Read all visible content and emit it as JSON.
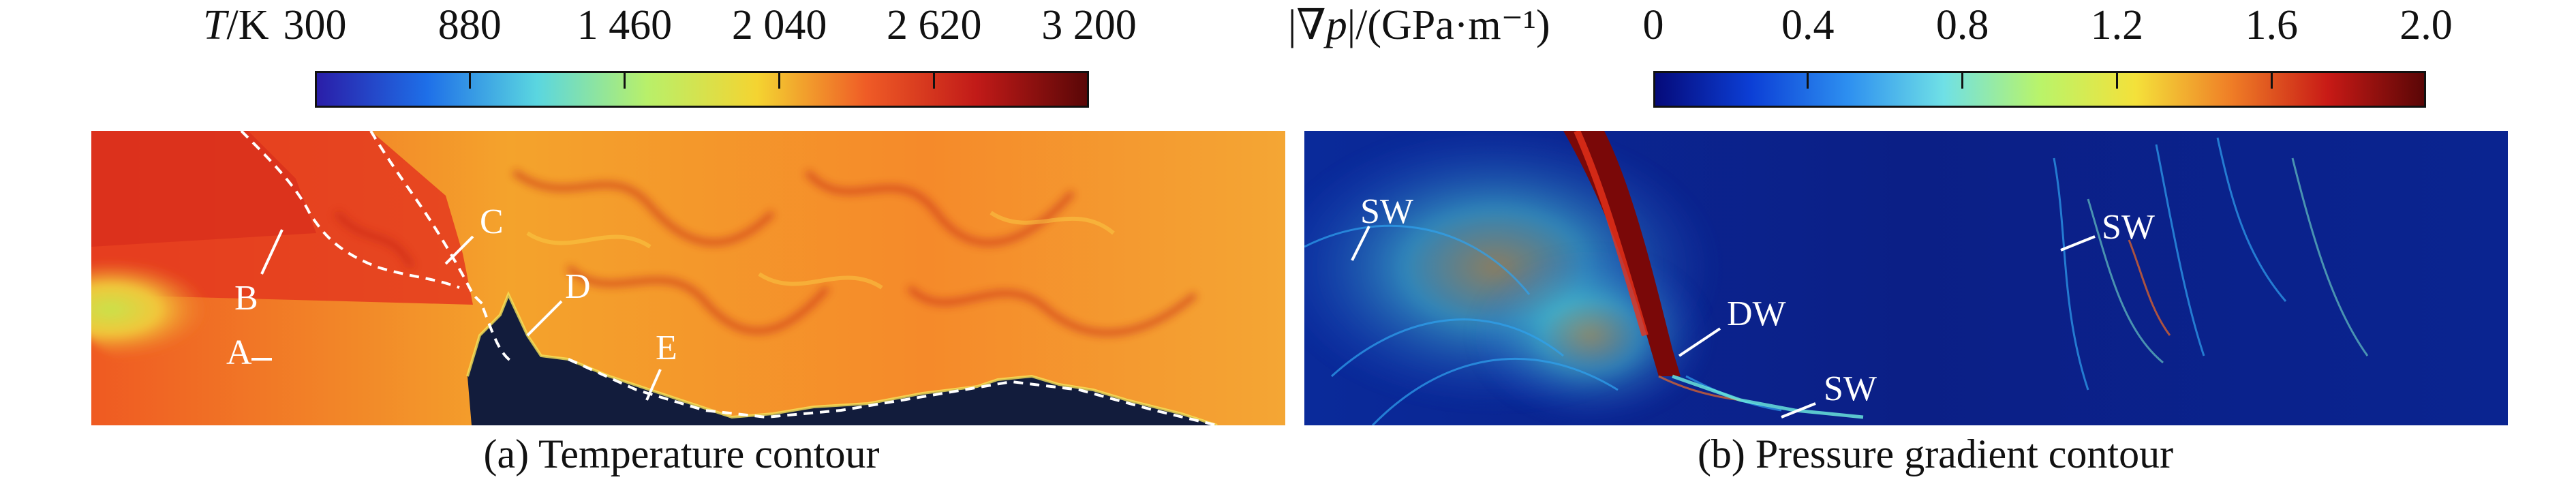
{
  "panel_a": {
    "colorbar": {
      "title": "T/K",
      "ticks": [
        "300",
        "880",
        "1 460",
        "2 040",
        "2 620",
        "3 200"
      ],
      "colormap": [
        "#2a1ea8",
        "#1e6fe8",
        "#5ad6e0",
        "#b8f06a",
        "#f4d431",
        "#ef5b26",
        "#c11a18",
        "#5a0707"
      ]
    },
    "labels": [
      "A",
      "B",
      "C",
      "D",
      "E"
    ],
    "caption": "(a) Temperature contour"
  },
  "panel_b": {
    "colorbar": {
      "title": "|∇p|/(GPa·m⁻¹)",
      "ticks": [
        "0",
        "0.4",
        "0.8",
        "1.2",
        "1.6",
        "2.0"
      ],
      "colormap": [
        "#050a7a",
        "#0c3fd6",
        "#2d8ff0",
        "#6fe0e6",
        "#b9f46a",
        "#f4e13a",
        "#ef7d26",
        "#c81a16",
        "#5a0606"
      ]
    },
    "labels": {
      "sw_top_left": "SW",
      "dw": "DW",
      "sw_bottom": "SW",
      "sw_right": "SW"
    },
    "caption": "(b) Pressure gradient contour"
  }
}
